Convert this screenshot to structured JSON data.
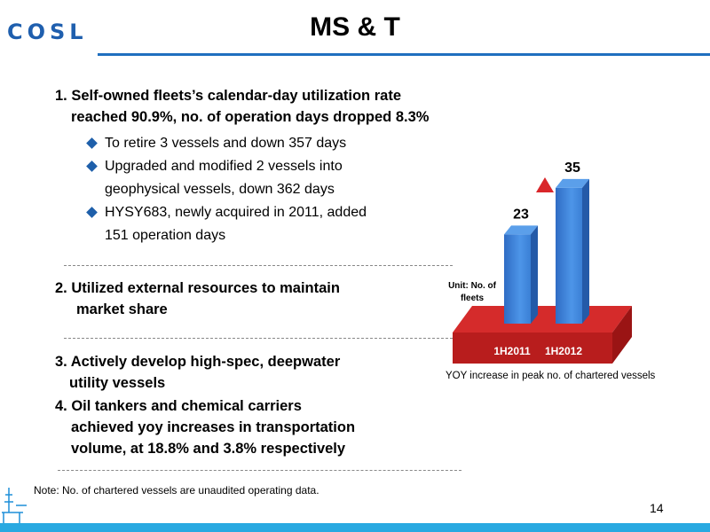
{
  "header": {
    "logo_text": "COSL",
    "title": "MS & T",
    "brand_color": "#1f5fae"
  },
  "section1": {
    "heading_line1": "1. Self-owned fleets’s calendar-day utilization rate",
    "heading_line2": "reached 90.9%, no. of operation days dropped 8.3%",
    "bullets": [
      {
        "line1": "To retire 3 vessels and down 357 days",
        "line2": ""
      },
      {
        "line1": "Upgraded and modified 2 vessels into",
        "line2": "geophysical vessels, down 362 days"
      },
      {
        "line1": "HYSY683, newly acquired in 2011, added",
        "line2": "151 operation days"
      }
    ]
  },
  "section2": {
    "number": "2.",
    "line1": "Utilized external resources to maintain",
    "line2": "market share"
  },
  "section3": {
    "line1": "3. Actively develop high-spec, deepwater",
    "line2": "utility vessels"
  },
  "section4": {
    "line1": "4. Oil tankers and chemical carriers",
    "line2": "achieved yoy increases in transportation",
    "line3": "volume, at 18.8% and 3.8% respectively"
  },
  "chart_data": {
    "type": "bar",
    "categories": [
      "1H2011",
      "1H2012"
    ],
    "values": [
      23,
      35
    ],
    "unit_label_line1": "Unit: No. of",
    "unit_label_line2": "fleets",
    "caption": "YOY  increase in peak no. of chartered vessels",
    "ylim": [
      0,
      40
    ],
    "bar_color": "#3a7fd5",
    "base_color": "#d52b2b",
    "arrow_color": "#d9262a"
  },
  "note": "Note: No. of  chartered vessels are unaudited operating data.",
  "page_number": "14",
  "icons": {
    "bullet": "diamond-bullet-icon",
    "rig": "oil-rig-icon",
    "up_arrow": "up-triangle-icon"
  }
}
